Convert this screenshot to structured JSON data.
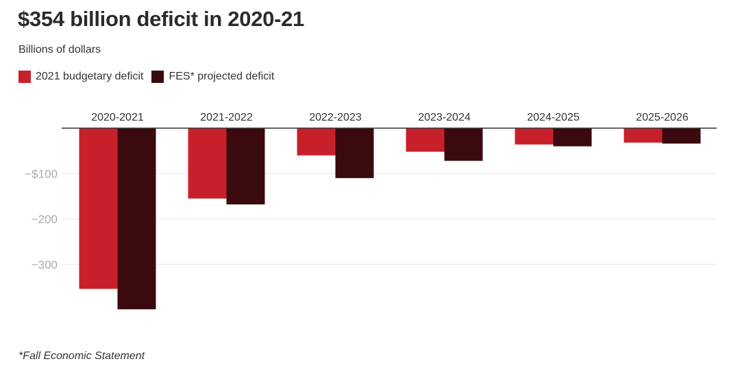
{
  "title": "$354 billion deficit in 2020-21",
  "subtitle": "Billions of dollars",
  "footnote": "*Fall Economic Statement",
  "colors": {
    "budget": "#c8202a",
    "fes": "#3b0a0e",
    "grid": "#e6e6e6",
    "axis": "#333333",
    "tick": "#aaaaaa"
  },
  "legend": [
    {
      "label": "2021 budgetary deficit",
      "color": "#c8202a"
    },
    {
      "label": "FES* projected deficit",
      "color": "#3b0a0e"
    }
  ],
  "chart_data": {
    "type": "bar",
    "categories": [
      "2020-2021",
      "2021-2022",
      "2022-2023",
      "2023-2024",
      "2024-2025",
      "2025-2026"
    ],
    "series": [
      {
        "name": "2021 budgetary deficit",
        "values": [
          -354,
          -155,
          -60,
          -52,
          -36,
          -32
        ]
      },
      {
        "name": "FES* projected deficit",
        "values": [
          -399,
          -168,
          -110,
          -72,
          -40,
          -34
        ]
      }
    ],
    "yticks": [
      {
        "value": -100,
        "label": "−$100"
      },
      {
        "value": -200,
        "label": "−200"
      },
      {
        "value": -300,
        "label": "−300"
      }
    ],
    "ylim": [
      -400,
      0
    ],
    "grid": true,
    "legend_position": "top-left",
    "category_label_position": "top"
  }
}
